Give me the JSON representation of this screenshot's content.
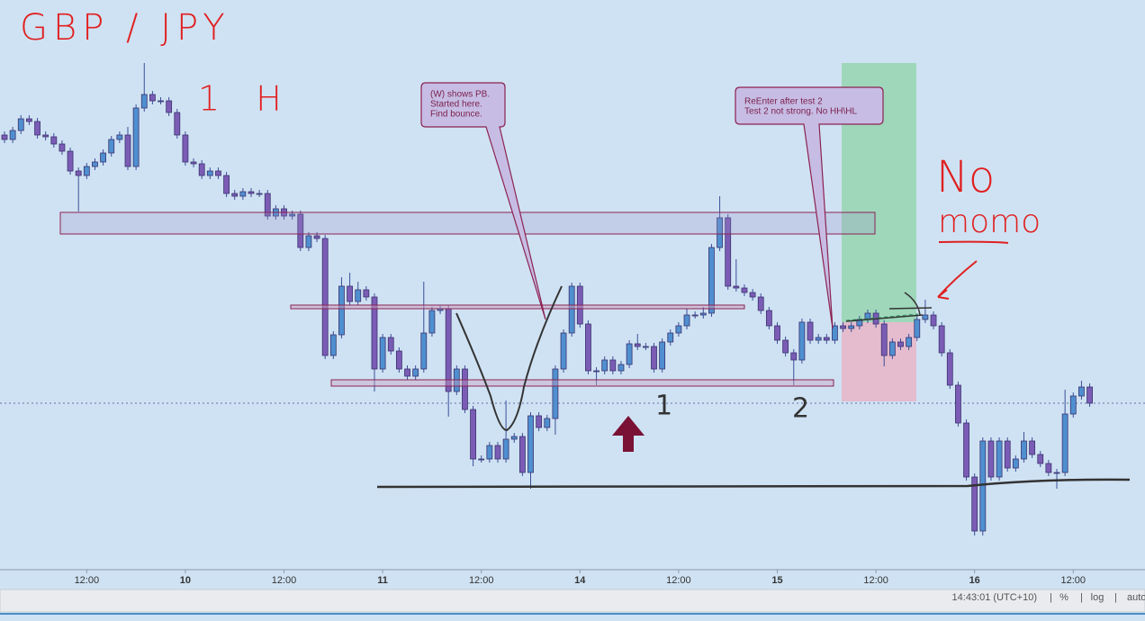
{
  "chart_data": {
    "type": "candlestick",
    "title": "GBP / JPY",
    "subtitle": "1 H",
    "up_color": "#4f8fcf",
    "down_color": "#7b5cb5",
    "ylim": [
      0,
      633
    ],
    "xticks": [
      {
        "value": 10,
        "label": "12:00"
      },
      {
        "value": 22,
        "label": "10"
      },
      {
        "value": 34,
        "label": "12:00"
      },
      {
        "value": 46,
        "label": "11"
      },
      {
        "value": 58,
        "label": "12:00"
      },
      {
        "value": 70,
        "label": "14"
      },
      {
        "value": 82,
        "label": "12:00"
      },
      {
        "value": 94,
        "label": "15"
      },
      {
        "value": 106,
        "label": "12:00"
      },
      {
        "value": 118,
        "label": "16"
      },
      {
        "value": 130,
        "label": "12:00"
      }
    ],
    "ohlc": [
      [
        483,
        487,
        474,
        478
      ],
      [
        478,
        492,
        474,
        488
      ],
      [
        488,
        505,
        484,
        501
      ],
      [
        501,
        505,
        494,
        498
      ],
      [
        498,
        502,
        479,
        483
      ],
      [
        483,
        487,
        477,
        481
      ],
      [
        481,
        485,
        469,
        473
      ],
      [
        473,
        477,
        461,
        465
      ],
      [
        465,
        469,
        439,
        443
      ],
      [
        443,
        447,
        398,
        438
      ],
      [
        438,
        452,
        434,
        448
      ],
      [
        448,
        457,
        444,
        453
      ],
      [
        453,
        467,
        449,
        463
      ],
      [
        463,
        482,
        459,
        478
      ],
      [
        478,
        487,
        474,
        483
      ],
      [
        483,
        492,
        444,
        448
      ],
      [
        448,
        517,
        444,
        513
      ],
      [
        513,
        563,
        509,
        528
      ],
      [
        528,
        532,
        517,
        521
      ],
      [
        521,
        525,
        517,
        521
      ],
      [
        521,
        525,
        504,
        508
      ],
      [
        508,
        512,
        479,
        483
      ],
      [
        483,
        487,
        449,
        453
      ],
      [
        453,
        457,
        447,
        451
      ],
      [
        451,
        455,
        434,
        438
      ],
      [
        438,
        447,
        434,
        443
      ],
      [
        443,
        447,
        434,
        438
      ],
      [
        438,
        442,
        414,
        418
      ],
      [
        418,
        422,
        411,
        415
      ],
      [
        415,
        424,
        411,
        420
      ],
      [
        420,
        424,
        414,
        418
      ],
      [
        418,
        422,
        414,
        418
      ],
      [
        418,
        422,
        389,
        393
      ],
      [
        393,
        405,
        389,
        401
      ],
      [
        401,
        405,
        389,
        393
      ],
      [
        393,
        399,
        389,
        395
      ],
      [
        395,
        399,
        354,
        358
      ],
      [
        358,
        375,
        354,
        371
      ],
      [
        371,
        375,
        364,
        368
      ],
      [
        368,
        372,
        234,
        238
      ],
      [
        238,
        265,
        234,
        261
      ],
      [
        261,
        325,
        257,
        315
      ],
      [
        315,
        330,
        294,
        298
      ],
      [
        298,
        320,
        294,
        311
      ],
      [
        311,
        315,
        299,
        303
      ],
      [
        303,
        307,
        198,
        223
      ],
      [
        223,
        262,
        219,
        258
      ],
      [
        258,
        262,
        239,
        243
      ],
      [
        243,
        247,
        219,
        223
      ],
      [
        223,
        227,
        211,
        215
      ],
      [
        215,
        227,
        211,
        223
      ],
      [
        223,
        320,
        219,
        263
      ],
      [
        263,
        292,
        259,
        288
      ],
      [
        288,
        294,
        284,
        290
      ],
      [
        290,
        294,
        170,
        198
      ],
      [
        198,
        227,
        194,
        223
      ],
      [
        223,
        227,
        174,
        178
      ],
      [
        178,
        182,
        115,
        123
      ],
      [
        123,
        127,
        119,
        123
      ],
      [
        123,
        142,
        119,
        138
      ],
      [
        138,
        142,
        119,
        123
      ],
      [
        123,
        188,
        119,
        145
      ],
      [
        145,
        152,
        141,
        148
      ],
      [
        148,
        152,
        104,
        108
      ],
      [
        108,
        175,
        90,
        171
      ],
      [
        171,
        175,
        154,
        158
      ],
      [
        158,
        172,
        154,
        168
      ],
      [
        168,
        227,
        150,
        223
      ],
      [
        223,
        267,
        219,
        263
      ],
      [
        263,
        319,
        259,
        315
      ],
      [
        315,
        319,
        269,
        273
      ],
      [
        273,
        277,
        217,
        221
      ],
      [
        221,
        225,
        205,
        221
      ],
      [
        221,
        237,
        217,
        233
      ],
      [
        233,
        237,
        217,
        221
      ],
      [
        221,
        232,
        217,
        228
      ],
      [
        228,
        255,
        224,
        251
      ],
      [
        251,
        262,
        244,
        248
      ],
      [
        248,
        252,
        244,
        248
      ],
      [
        248,
        252,
        219,
        223
      ],
      [
        223,
        257,
        219,
        253
      ],
      [
        253,
        267,
        249,
        263
      ],
      [
        263,
        275,
        259,
        271
      ],
      [
        271,
        290,
        267,
        283
      ],
      [
        283,
        287,
        279,
        283
      ],
      [
        283,
        292,
        279,
        285
      ],
      [
        285,
        362,
        281,
        358
      ],
      [
        358,
        415,
        354,
        391
      ],
      [
        391,
        395,
        311,
        315
      ],
      [
        315,
        345,
        309,
        313
      ],
      [
        313,
        317,
        304,
        308
      ],
      [
        308,
        312,
        299,
        303
      ],
      [
        303,
        307,
        284,
        288
      ],
      [
        288,
        292,
        267,
        271
      ],
      [
        271,
        275,
        251,
        255
      ],
      [
        255,
        259,
        237,
        241
      ],
      [
        241,
        245,
        205,
        233
      ],
      [
        233,
        279,
        229,
        275
      ],
      [
        275,
        279,
        251,
        255
      ],
      [
        255,
        262,
        251,
        258
      ],
      [
        258,
        262,
        251,
        255
      ],
      [
        255,
        275,
        251,
        271
      ],
      [
        271,
        275,
        264,
        268
      ],
      [
        268,
        275,
        264,
        271
      ],
      [
        271,
        282,
        267,
        278
      ],
      [
        278,
        289,
        274,
        285
      ],
      [
        285,
        289,
        269,
        273
      ],
      [
        273,
        277,
        226,
        238
      ],
      [
        238,
        257,
        234,
        253
      ],
      [
        253,
        257,
        244,
        248
      ],
      [
        248,
        262,
        244,
        258
      ],
      [
        258,
        282,
        254,
        278
      ],
      [
        278,
        300,
        274,
        283
      ],
      [
        283,
        287,
        267,
        271
      ],
      [
        271,
        275,
        237,
        241
      ],
      [
        241,
        245,
        201,
        205
      ],
      [
        205,
        209,
        159,
        163
      ],
      [
        163,
        167,
        99,
        103
      ],
      [
        103,
        107,
        38,
        43
      ],
      [
        43,
        147,
        38,
        143
      ],
      [
        143,
        147,
        99,
        103
      ],
      [
        103,
        147,
        99,
        143
      ],
      [
        143,
        147,
        109,
        113
      ],
      [
        113,
        127,
        109,
        123
      ],
      [
        123,
        153,
        119,
        143
      ],
      [
        143,
        147,
        124,
        128
      ],
      [
        128,
        132,
        114,
        118
      ],
      [
        118,
        122,
        104,
        108
      ],
      [
        108,
        112,
        90,
        108
      ],
      [
        108,
        200,
        104,
        173
      ],
      [
        173,
        197,
        169,
        193
      ],
      [
        193,
        210,
        189,
        203
      ],
      [
        203,
        207,
        181,
        185
      ]
    ],
    "annotations": [
      "No",
      "momo",
      "(W) shows PB.",
      "Started here.",
      "Find bounce.",
      "ReEnter after test 2",
      "Test 2 not strong. No HH\\HL",
      "1",
      "2"
    ]
  },
  "status_bar": {
    "time": "14:43:01 (UTC+10)",
    "percent": "%",
    "log": "log",
    "auto": "auto"
  }
}
